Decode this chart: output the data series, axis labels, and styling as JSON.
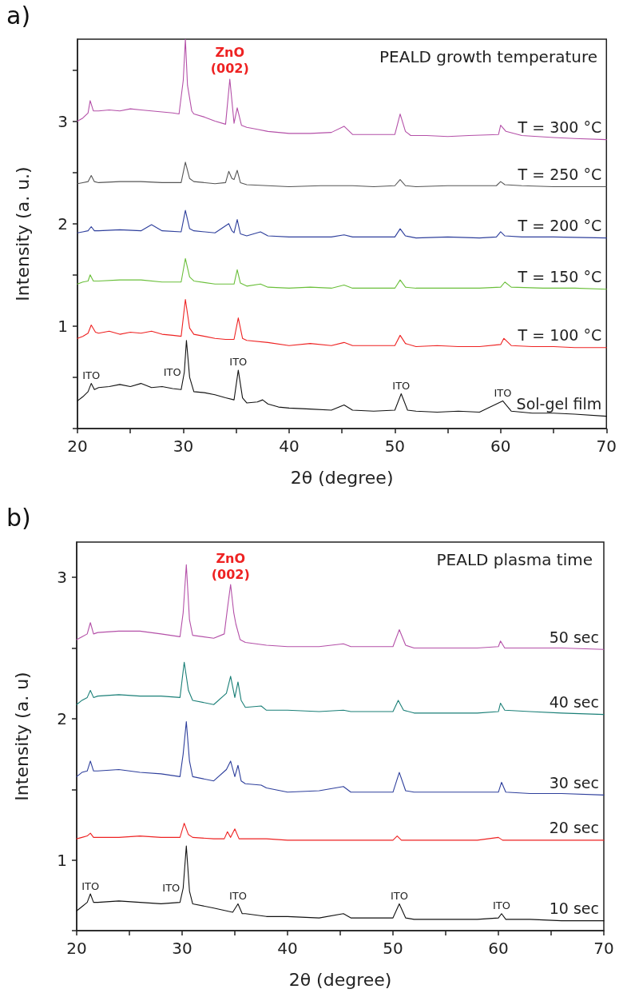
{
  "chart_data": [
    {
      "type": "line",
      "title": "PEALD growth temperature",
      "xlabel": "2θ (degree)",
      "ylabel": "Intensity (a. u.)",
      "marker": "none",
      "line_style": "solid",
      "xlim": [
        20,
        70
      ],
      "ylim": [
        0,
        3.8
      ],
      "xticks": [
        20,
        {
          "value": 25,
          "label": null
        },
        30,
        {
          "value": 35,
          "label": null
        },
        40,
        {
          "value": 45,
          "label": null
        },
        50,
        {
          "value": 55,
          "label": null
        },
        60,
        {
          "value": 65,
          "label": null
        },
        70
      ],
      "yticks": [
        {
          "value": 0,
          "label": null
        },
        {
          "value": 0.5,
          "label": null
        },
        1,
        {
          "value": 1.5,
          "label": null
        },
        2,
        {
          "value": 2.5,
          "label": null
        },
        3,
        {
          "value": 3.5,
          "label": null
        }
      ],
      "annotations": [
        "a)",
        {
          "text": "ZnO\n(002)",
          "x": 34.4,
          "y": 3.41
        },
        {
          "text": "ITO",
          "x": 21.3,
          "y": 0.44
        },
        {
          "text": "ITO",
          "x": 30.1,
          "y": 0.55
        },
        {
          "text": "ITO",
          "x": 35.2,
          "y": 0.57
        },
        {
          "text": "ITO",
          "x": 50.6,
          "y": 0.34
        },
        {
          "text": "ITO",
          "x": 60.2,
          "y": 0.27
        }
      ],
      "series": [
        {
          "name": "Sol-gel film",
          "color": "#111111",
          "x": [
            20,
            20.5,
            21,
            21.3,
            21.6,
            22,
            23,
            24,
            25,
            26,
            27,
            28,
            29,
            29.8,
            30.1,
            30.3,
            30.6,
            31,
            32,
            33,
            34,
            34.8,
            35.2,
            35.6,
            36,
            37,
            37.5,
            38,
            39,
            40,
            42,
            44,
            45.2,
            46,
            48,
            50,
            50.6,
            51.2,
            52,
            54,
            56,
            58,
            60.2,
            61,
            63,
            65,
            67,
            70
          ],
          "values": [
            0.27,
            0.31,
            0.36,
            0.44,
            0.38,
            0.4,
            0.41,
            0.43,
            0.41,
            0.44,
            0.4,
            0.41,
            0.39,
            0.38,
            0.55,
            0.86,
            0.5,
            0.36,
            0.35,
            0.33,
            0.3,
            0.28,
            0.57,
            0.3,
            0.25,
            0.26,
            0.28,
            0.24,
            0.21,
            0.2,
            0.19,
            0.18,
            0.23,
            0.18,
            0.17,
            0.18,
            0.34,
            0.18,
            0.17,
            0.16,
            0.17,
            0.16,
            0.27,
            0.17,
            0.15,
            0.15,
            0.14,
            0.12
          ]
        },
        {
          "name": "T = 100 °C",
          "color": "#ee2222",
          "x": [
            20,
            20.5,
            21,
            21.3,
            21.7,
            22,
            23,
            24,
            25,
            26,
            27,
            28,
            29,
            29.8,
            30.2,
            30.6,
            31,
            32,
            33,
            34,
            34.8,
            35.2,
            35.6,
            36,
            38,
            40,
            42,
            44,
            45.2,
            46,
            48,
            50,
            50.5,
            51,
            52,
            54,
            56,
            58,
            60,
            60.3,
            61,
            63,
            65,
            67,
            70
          ],
          "values": [
            0.88,
            0.9,
            0.93,
            1.01,
            0.94,
            0.93,
            0.95,
            0.92,
            0.94,
            0.93,
            0.95,
            0.92,
            0.91,
            0.9,
            1.26,
            0.98,
            0.92,
            0.9,
            0.88,
            0.87,
            0.87,
            1.08,
            0.88,
            0.86,
            0.84,
            0.81,
            0.83,
            0.81,
            0.84,
            0.81,
            0.81,
            0.81,
            0.91,
            0.83,
            0.8,
            0.81,
            0.8,
            0.8,
            0.82,
            0.88,
            0.81,
            0.8,
            0.8,
            0.79,
            0.79
          ]
        },
        {
          "name": "T = 150 °C",
          "color": "#6abf3a",
          "x": [
            20,
            20.5,
            21,
            21.2,
            21.5,
            22,
            24,
            26,
            28,
            29.8,
            30.2,
            30.6,
            31,
            33,
            34.8,
            35.1,
            35.4,
            36,
            37.3,
            38,
            40,
            42,
            44,
            45.2,
            46,
            48,
            50,
            50.5,
            51,
            52,
            55,
            58,
            60,
            60.4,
            61,
            64,
            67,
            70
          ],
          "values": [
            1.41,
            1.43,
            1.44,
            1.5,
            1.44,
            1.44,
            1.45,
            1.45,
            1.43,
            1.43,
            1.66,
            1.48,
            1.44,
            1.41,
            1.41,
            1.55,
            1.42,
            1.39,
            1.41,
            1.38,
            1.37,
            1.38,
            1.37,
            1.4,
            1.37,
            1.37,
            1.37,
            1.45,
            1.38,
            1.37,
            1.37,
            1.37,
            1.38,
            1.43,
            1.38,
            1.37,
            1.37,
            1.36
          ]
        },
        {
          "name": "T = 200 °C",
          "color": "#2e3f9c",
          "x": [
            20,
            20.5,
            21,
            21.3,
            21.6,
            22,
            24,
            26,
            27,
            28,
            29.8,
            30.2,
            30.6,
            31,
            33,
            34.3,
            34.6,
            34.8,
            35.1,
            35.4,
            36,
            37.3,
            38,
            40,
            42,
            44,
            45.2,
            46,
            48,
            50,
            50.5,
            51,
            52,
            55,
            58,
            59.6,
            60,
            60.4,
            62,
            65,
            70
          ],
          "values": [
            1.91,
            1.92,
            1.93,
            1.97,
            1.93,
            1.93,
            1.94,
            1.93,
            1.99,
            1.93,
            1.92,
            2.13,
            1.95,
            1.93,
            1.91,
            2.0,
            1.93,
            1.91,
            2.04,
            1.9,
            1.88,
            1.92,
            1.88,
            1.87,
            1.87,
            1.87,
            1.89,
            1.87,
            1.87,
            1.87,
            1.95,
            1.88,
            1.86,
            1.87,
            1.86,
            1.87,
            1.92,
            1.88,
            1.87,
            1.87,
            1.86
          ]
        },
        {
          "name": "T = 250 °C",
          "color": "#555555",
          "x": [
            20,
            20.5,
            21,
            21.3,
            21.6,
            22,
            24,
            26,
            28,
            29.8,
            30.2,
            30.6,
            31,
            33,
            34.0,
            34.3,
            34.6,
            34.8,
            35.1,
            35.4,
            36,
            38,
            40,
            43,
            46,
            48,
            50,
            50.5,
            51,
            52,
            55,
            58,
            59.6,
            60,
            60.4,
            62,
            65,
            70
          ],
          "values": [
            2.39,
            2.4,
            2.41,
            2.47,
            2.41,
            2.4,
            2.41,
            2.41,
            2.4,
            2.4,
            2.6,
            2.44,
            2.41,
            2.39,
            2.4,
            2.51,
            2.44,
            2.43,
            2.52,
            2.4,
            2.38,
            2.37,
            2.36,
            2.37,
            2.37,
            2.36,
            2.37,
            2.43,
            2.37,
            2.36,
            2.37,
            2.37,
            2.37,
            2.41,
            2.38,
            2.37,
            2.36,
            2.36
          ]
        },
        {
          "name": "T = 300 °C",
          "color": "#b450a8",
          "x": [
            20,
            20.5,
            21,
            21.2,
            21.5,
            22,
            23,
            24,
            25,
            26,
            27,
            28,
            29,
            29.6,
            30.0,
            30.2,
            30.4,
            30.8,
            31,
            32,
            33,
            34.0,
            34.4,
            34.8,
            35.1,
            35.5,
            36,
            37,
            38,
            40,
            42,
            44,
            45.2,
            46,
            48,
            50,
            50.5,
            51,
            51.5,
            53,
            55,
            57,
            59.8,
            60.0,
            60.5,
            62,
            65,
            67,
            70
          ],
          "values": [
            3.0,
            3.03,
            3.08,
            3.2,
            3.1,
            3.1,
            3.11,
            3.1,
            3.12,
            3.11,
            3.1,
            3.09,
            3.08,
            3.07,
            3.4,
            3.8,
            3.35,
            3.1,
            3.07,
            3.04,
            3.0,
            2.97,
            3.41,
            2.98,
            3.13,
            2.96,
            2.94,
            2.92,
            2.9,
            2.88,
            2.88,
            2.89,
            2.95,
            2.87,
            2.87,
            2.87,
            3.07,
            2.9,
            2.86,
            2.86,
            2.85,
            2.86,
            2.87,
            2.96,
            2.9,
            2.86,
            2.84,
            2.83,
            2.82
          ]
        }
      ]
    },
    {
      "type": "line",
      "title": "PEALD plasma time",
      "xlabel": "2θ (degree)",
      "ylabel": "Intensity (a. u)",
      "marker": "none",
      "line_style": "solid",
      "xlim": [
        20,
        70
      ],
      "ylim": [
        0.5,
        3.25
      ],
      "xticks": [
        20,
        {
          "value": 25,
          "label": null
        },
        30,
        {
          "value": 35,
          "label": null
        },
        40,
        {
          "value": 45,
          "label": null
        },
        50,
        {
          "value": 55,
          "label": null
        },
        60,
        {
          "value": 65,
          "label": null
        },
        70
      ],
      "yticks": [
        {
          "value": 0.5,
          "label": null
        },
        1,
        {
          "value": 1.5,
          "label": null
        },
        2,
        {
          "value": 2.5,
          "label": null
        },
        3
      ],
      "annotations": [
        "b)",
        {
          "text": "ZnO\n(002)",
          "x": 34.6,
          "y": 2.95
        },
        {
          "text": "ITO",
          "x": 21.3,
          "y": 0.76
        },
        {
          "text": "ITO",
          "x": 30.1,
          "y": 0.8
        },
        {
          "text": "ITO",
          "x": 35.3,
          "y": 0.69
        },
        {
          "text": "ITO",
          "x": 50.6,
          "y": 0.69
        },
        {
          "text": "ITO",
          "x": 60.3,
          "y": 0.62
        }
      ],
      "series": [
        {
          "name": "10 sec",
          "color": "#111111",
          "x": [
            20,
            20.5,
            21,
            21.3,
            21.6,
            22,
            24,
            26,
            28,
            29.8,
            30.1,
            30.4,
            30.7,
            31,
            33,
            34.8,
            35.3,
            35.7,
            36,
            38,
            40,
            43,
            45.3,
            46,
            48,
            50,
            50.6,
            51.2,
            52,
            55,
            58,
            60,
            60.3,
            60.7,
            63,
            66,
            70
          ],
          "values": [
            0.64,
            0.67,
            0.7,
            0.76,
            0.7,
            0.7,
            0.71,
            0.7,
            0.69,
            0.7,
            0.8,
            1.1,
            0.78,
            0.69,
            0.66,
            0.63,
            0.69,
            0.62,
            0.62,
            0.6,
            0.6,
            0.59,
            0.62,
            0.59,
            0.59,
            0.59,
            0.69,
            0.59,
            0.58,
            0.58,
            0.58,
            0.59,
            0.62,
            0.58,
            0.58,
            0.57,
            0.57
          ]
        },
        {
          "name": "20 sec",
          "color": "#ee2222",
          "x": [
            20,
            20.5,
            21,
            21.3,
            21.6,
            22,
            24,
            26,
            28,
            29.8,
            30.2,
            30.6,
            31,
            33,
            34.0,
            34.3,
            34.6,
            35.0,
            35.4,
            36,
            38,
            40,
            43,
            46,
            48,
            50,
            50.4,
            50.8,
            52,
            55,
            58,
            60,
            60.4,
            63,
            66,
            70
          ],
          "values": [
            1.15,
            1.16,
            1.17,
            1.19,
            1.16,
            1.16,
            1.16,
            1.17,
            1.16,
            1.16,
            1.26,
            1.18,
            1.16,
            1.15,
            1.15,
            1.2,
            1.16,
            1.22,
            1.15,
            1.15,
            1.15,
            1.14,
            1.14,
            1.14,
            1.14,
            1.14,
            1.17,
            1.14,
            1.14,
            1.14,
            1.14,
            1.16,
            1.14,
            1.14,
            1.14,
            1.14
          ]
        },
        {
          "name": "30 sec",
          "color": "#2e3f9c",
          "x": [
            20,
            20.5,
            21,
            21.3,
            21.6,
            22,
            24,
            26,
            28,
            29.8,
            30.1,
            30.4,
            30.7,
            31,
            33,
            34.2,
            34.6,
            35.0,
            35.3,
            35.6,
            36,
            37.5,
            38,
            40,
            43,
            45.3,
            46,
            48,
            50,
            50.6,
            51.2,
            52,
            55,
            58,
            60,
            60.3,
            60.7,
            63,
            66,
            70
          ],
          "values": [
            1.59,
            1.62,
            1.63,
            1.7,
            1.63,
            1.63,
            1.64,
            1.62,
            1.61,
            1.59,
            1.75,
            1.98,
            1.7,
            1.59,
            1.56,
            1.64,
            1.7,
            1.59,
            1.67,
            1.56,
            1.54,
            1.53,
            1.51,
            1.48,
            1.49,
            1.52,
            1.48,
            1.48,
            1.48,
            1.62,
            1.49,
            1.48,
            1.48,
            1.48,
            1.48,
            1.55,
            1.48,
            1.47,
            1.47,
            1.46
          ]
        },
        {
          "name": "40 sec",
          "color": "#1a7f77",
          "x": [
            20,
            20.5,
            21,
            21.3,
            21.6,
            22,
            24,
            26,
            28,
            29.8,
            30.2,
            30.6,
            31,
            33,
            34.2,
            34.6,
            35.0,
            35.3,
            35.6,
            36,
            37.5,
            38,
            40,
            43,
            45.3,
            46,
            48,
            50,
            50.5,
            51,
            52,
            55,
            58,
            60,
            60.2,
            60.6,
            63,
            66,
            70
          ],
          "values": [
            2.1,
            2.13,
            2.15,
            2.2,
            2.15,
            2.16,
            2.17,
            2.16,
            2.16,
            2.15,
            2.4,
            2.2,
            2.13,
            2.1,
            2.18,
            2.3,
            2.15,
            2.26,
            2.13,
            2.08,
            2.09,
            2.06,
            2.06,
            2.05,
            2.06,
            2.05,
            2.05,
            2.05,
            2.13,
            2.06,
            2.04,
            2.04,
            2.04,
            2.05,
            2.11,
            2.06,
            2.05,
            2.04,
            2.03
          ]
        },
        {
          "name": "50 sec",
          "color": "#b450a8",
          "x": [
            20,
            20.5,
            21,
            21.3,
            21.6,
            22,
            24,
            26,
            28,
            29.8,
            30.1,
            30.4,
            30.7,
            31,
            33,
            34.0,
            34.3,
            34.6,
            34.9,
            35.1,
            35.5,
            36,
            38,
            40,
            43,
            45.3,
            46,
            48,
            50,
            50.6,
            51.2,
            52,
            55,
            58,
            60,
            60.2,
            60.6,
            63,
            66,
            70
          ],
          "values": [
            2.56,
            2.58,
            2.6,
            2.68,
            2.6,
            2.61,
            2.62,
            2.62,
            2.6,
            2.58,
            2.75,
            3.09,
            2.7,
            2.59,
            2.57,
            2.6,
            2.78,
            2.95,
            2.75,
            2.67,
            2.56,
            2.54,
            2.52,
            2.51,
            2.51,
            2.53,
            2.51,
            2.51,
            2.51,
            2.63,
            2.52,
            2.5,
            2.5,
            2.5,
            2.51,
            2.55,
            2.5,
            2.5,
            2.5,
            2.49
          ]
        }
      ]
    }
  ]
}
